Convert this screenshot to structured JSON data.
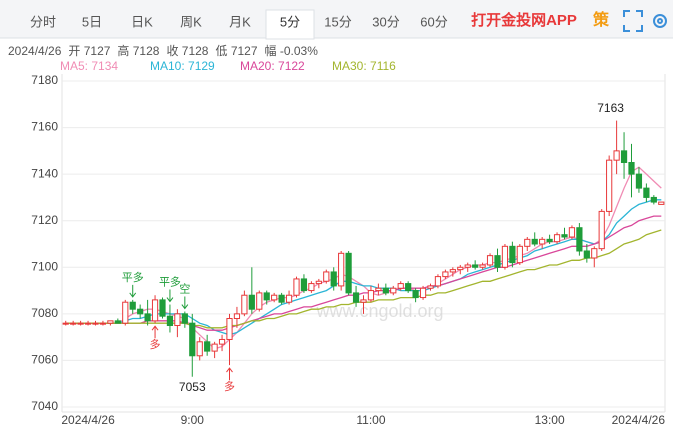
{
  "toolbar": {
    "tabs": [
      "分时",
      "5日",
      "日K",
      "周K",
      "月K",
      "5分",
      "15分",
      "30分",
      "60分"
    ],
    "selected_tab": 5,
    "app_link": "打开金投网APP",
    "strategy": "策"
  },
  "quote": [
    "2024/4/26",
    "开 7127",
    "高 7128",
    "收 7128",
    "低 7127",
    "幅 -0.03%"
  ],
  "chart_data": {
    "type": "candlestick",
    "watermark": "www.cngold.org",
    "categories": [
      null,
      null,
      null,
      "2024/4/26",
      null,
      null,
      null,
      null,
      null,
      null,
      null,
      null,
      null,
      null,
      null,
      null,
      null,
      "9:00",
      null,
      null,
      null,
      null,
      null,
      null,
      null,
      null,
      null,
      null,
      null,
      null,
      null,
      null,
      null,
      null,
      null,
      null,
      null,
      null,
      null,
      null,
      null,
      "11:00",
      null,
      null,
      null,
      null,
      null,
      null,
      null,
      null,
      null,
      null,
      null,
      null,
      null,
      null,
      null,
      null,
      null,
      null,
      null,
      null,
      null,
      null,
      null,
      "13:00",
      null,
      null,
      null,
      null,
      null,
      null,
      null,
      null,
      null,
      null,
      null,
      null,
      null,
      null,
      "2024/4/26"
    ],
    "open": [
      7076,
      7076,
      7076,
      7076,
      7076,
      7076,
      7076,
      7077,
      7076,
      7085,
      7082,
      7080,
      7077,
      7086,
      7079,
      7075,
      7080,
      7076,
      7062,
      7068,
      7064,
      7067,
      7069,
      7078,
      7080,
      7088,
      7082,
      7089,
      7086,
      7088,
      7085,
      7088,
      7095,
      7090,
      7093,
      7094,
      7098,
      7092,
      7106,
      7089,
      7085,
      7086,
      7090,
      7091,
      7089,
      7091,
      7093,
      7090,
      7087,
      7091,
      7092,
      7096,
      7098,
      7099,
      7100,
      7101,
      7100,
      7101,
      7105,
      7100,
      7109,
      7102,
      7109,
      7112,
      7110,
      7112,
      7111,
      7114,
      7113,
      7117,
      7107,
      7104,
      7108,
      7124,
      7146,
      7150,
      7145,
      7140,
      7134,
      7130,
      7127
    ],
    "high": [
      7077,
      7077,
      7077,
      7077,
      7077,
      7077,
      7077,
      7078,
      7086,
      7086,
      7084,
      7086,
      7088,
      7087,
      7084,
      7082,
      7081,
      7080,
      7070,
      7071,
      7068,
      7071,
      7080,
      7083,
      7090,
      7100,
      7090,
      7090,
      7089,
      7089,
      7090,
      7096,
      7097,
      7094,
      7095,
      7099,
      7100,
      7107,
      7107,
      7092,
      7088,
      7092,
      7093,
      7093,
      7092,
      7094,
      7094,
      7091,
      7092,
      7093,
      7097,
      7099,
      7100,
      7101,
      7102,
      7103,
      7102,
      7106,
      7108,
      7110,
      7111,
      7110,
      7113,
      7115,
      7113,
      7114,
      7115,
      7117,
      7118,
      7119,
      7110,
      7109,
      7125,
      7148,
      7163,
      7158,
      7153,
      7143,
      7136,
      7131,
      7128
    ],
    "low": [
      7075,
      7075,
      7075,
      7075,
      7075,
      7075,
      7075,
      7076,
      7075,
      7080,
      7078,
      7075,
      7076,
      7078,
      7072,
      7070,
      7074,
      7053,
      7060,
      7062,
      7061,
      7064,
      7058,
      7074,
      7079,
      7080,
      7081,
      7084,
      7085,
      7084,
      7084,
      7087,
      7089,
      7089,
      7091,
      7093,
      7090,
      7090,
      7088,
      7083,
      7080,
      7085,
      7088,
      7088,
      7088,
      7090,
      7089,
      7085,
      7086,
      7090,
      7091,
      7095,
      7096,
      7097,
      7098,
      7099,
      7099,
      7100,
      7098,
      7099,
      7100,
      7101,
      7107,
      7109,
      7108,
      7110,
      7110,
      7112,
      7112,
      7105,
      7102,
      7100,
      7107,
      7122,
      7140,
      7138,
      7130,
      7132,
      7128,
      7127,
      7127
    ],
    "close": [
      7076,
      7076,
      7076,
      7076,
      7076,
      7076,
      7077,
      7076,
      7085,
      7082,
      7080,
      7077,
      7086,
      7079,
      7075,
      7080,
      7076,
      7062,
      7068,
      7064,
      7067,
      7069,
      7078,
      7080,
      7088,
      7082,
      7089,
      7086,
      7088,
      7085,
      7088,
      7095,
      7090,
      7093,
      7094,
      7098,
      7092,
      7106,
      7089,
      7085,
      7086,
      7090,
      7091,
      7089,
      7091,
      7093,
      7090,
      7087,
      7091,
      7092,
      7096,
      7098,
      7099,
      7100,
      7101,
      7100,
      7101,
      7105,
      7100,
      7109,
      7102,
      7109,
      7112,
      7110,
      7112,
      7111,
      7114,
      7113,
      7117,
      7107,
      7104,
      7108,
      7124,
      7146,
      7150,
      7145,
      7140,
      7134,
      7130,
      7128,
      7128
    ],
    "up_color": "#e8393a",
    "down_color": "#1f9d3a",
    "up_hollow": true,
    "label_extremes": true,
    "series": [
      {
        "name": "MA5: 7134",
        "color": "#f08cb4",
        "values": [
          7076,
          7076,
          7076,
          7076,
          7076,
          7076,
          7076,
          7076,
          7078,
          7080,
          7081,
          7082,
          7082,
          7081,
          7080,
          7079,
          7078,
          7074,
          7071,
          7068,
          7065,
          7066,
          7069,
          7072,
          7076,
          7080,
          7083,
          7085,
          7086,
          7087,
          7087,
          7088,
          7090,
          7091,
          7093,
          7094,
          7095,
          7097,
          7096,
          7094,
          7092,
          7089,
          7088,
          7089,
          7090,
          7091,
          7091,
          7090,
          7090,
          7091,
          7093,
          7095,
          7097,
          7099,
          7100,
          7101,
          7101,
          7102,
          7102,
          7103,
          7104,
          7105,
          7106,
          7108,
          7110,
          7111,
          7111,
          7112,
          7113,
          7112,
          7111,
          7110,
          7112,
          7118,
          7126,
          7134,
          7141,
          7143,
          7140,
          7137,
          7134
        ]
      },
      {
        "name": "MA10: 7129",
        "color": "#2bb5d6",
        "values": [
          7076,
          7076,
          7076,
          7076,
          7076,
          7076,
          7076,
          7076,
          7077,
          7078,
          7078,
          7079,
          7080,
          7080,
          7080,
          7080,
          7080,
          7078,
          7076,
          7075,
          7073,
          7072,
          7071,
          7072,
          7074,
          7076,
          7078,
          7080,
          7082,
          7084,
          7085,
          7086,
          7087,
          7088,
          7089,
          7090,
          7092,
          7094,
          7094,
          7093,
          7092,
          7092,
          7091,
          7091,
          7091,
          7090,
          7090,
          7090,
          7090,
          7091,
          7092,
          7093,
          7094,
          7095,
          7097,
          7098,
          7099,
          7100,
          7101,
          7102,
          7103,
          7104,
          7105,
          7107,
          7108,
          7109,
          7110,
          7111,
          7112,
          7112,
          7111,
          7110,
          7111,
          7114,
          7119,
          7122,
          7125,
          7127,
          7128,
          7129,
          7129
        ]
      },
      {
        "name": "MA20: 7122",
        "color": "#d9479a",
        "values": [
          7076,
          7076,
          7076,
          7076,
          7076,
          7076,
          7076,
          7076,
          7076,
          7076,
          7076,
          7077,
          7077,
          7077,
          7077,
          7077,
          7076,
          7075,
          7074,
          7073,
          7073,
          7073,
          7074,
          7075,
          7076,
          7077,
          7078,
          7079,
          7080,
          7080,
          7081,
          7082,
          7083,
          7083,
          7084,
          7085,
          7086,
          7087,
          7088,
          7088,
          7089,
          7089,
          7090,
          7090,
          7090,
          7091,
          7091,
          7091,
          7091,
          7092,
          7092,
          7093,
          7094,
          7095,
          7096,
          7097,
          7098,
          7099,
          7100,
          7100,
          7101,
          7102,
          7103,
          7104,
          7105,
          7106,
          7107,
          7108,
          7109,
          7109,
          7109,
          7110,
          7111,
          7113,
          7115,
          7117,
          7118,
          7120,
          7121,
          7122,
          7122
        ]
      },
      {
        "name": "MA30: 7116",
        "color": "#a3b52e",
        "values": [
          7076,
          7076,
          7076,
          7076,
          7076,
          7076,
          7076,
          7076,
          7076,
          7076,
          7076,
          7076,
          7076,
          7076,
          7076,
          7076,
          7076,
          7075,
          7075,
          7074,
          7074,
          7074,
          7075,
          7075,
          7076,
          7077,
          7077,
          7078,
          7078,
          7079,
          7080,
          7080,
          7081,
          7082,
          7082,
          7083,
          7083,
          7084,
          7084,
          7085,
          7085,
          7085,
          7086,
          7086,
          7086,
          7087,
          7087,
          7087,
          7088,
          7088,
          7089,
          7089,
          7090,
          7091,
          7092,
          7093,
          7094,
          7094,
          7095,
          7096,
          7097,
          7098,
          7099,
          7099,
          7100,
          7101,
          7101,
          7102,
          7103,
          7103,
          7104,
          7104,
          7105,
          7106,
          7108,
          7110,
          7111,
          7112,
          7114,
          7115,
          7116
        ]
      }
    ],
    "annotations": [
      {
        "text": "平多",
        "candle": 9,
        "side": "above"
      },
      {
        "text": "平多",
        "candle": 14,
        "side": "above"
      },
      {
        "text": "空",
        "candle": 16,
        "side": "above"
      },
      {
        "text": "多",
        "candle": 12,
        "side": "below"
      },
      {
        "text": "多",
        "candle": 22,
        "side": "below"
      }
    ],
    "ylim": [
      7040,
      7180
    ],
    "yticks": [
      7040,
      7060,
      7080,
      7100,
      7120,
      7140,
      7160,
      7180
    ],
    "grid": true
  }
}
